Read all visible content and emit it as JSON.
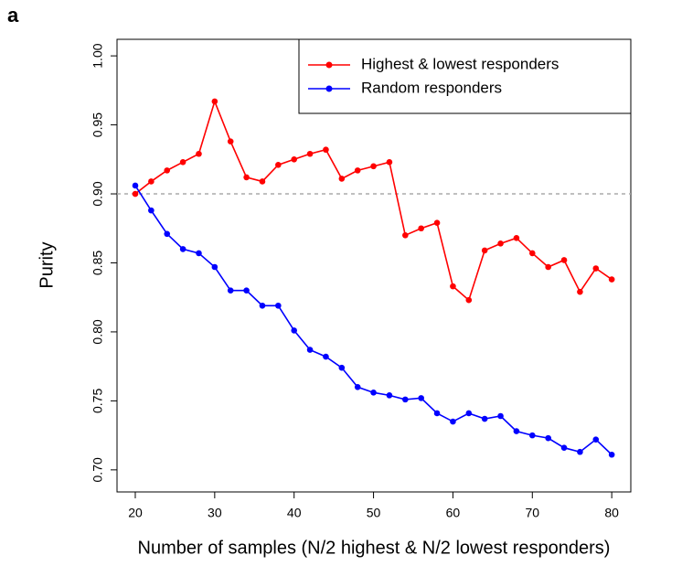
{
  "chart_data": {
    "type": "line",
    "panel_label": "a",
    "x_label": "Number of samples (N/2 highest & N/2 lowest responders)",
    "y_label": "Purity",
    "x": [
      20,
      22,
      24,
      26,
      28,
      30,
      32,
      34,
      36,
      38,
      40,
      42,
      44,
      46,
      48,
      50,
      52,
      54,
      56,
      58,
      60,
      62,
      64,
      66,
      68,
      70,
      72,
      74,
      76,
      78,
      80
    ],
    "series": [
      {
        "name": "Highest & lowest responders",
        "color": "#ff0000",
        "values": [
          0.9,
          0.909,
          0.917,
          0.923,
          0.929,
          0.967,
          0.938,
          0.912,
          0.909,
          0.921,
          0.925,
          0.929,
          0.932,
          0.911,
          0.917,
          0.92,
          0.923,
          0.87,
          0.875,
          0.879,
          0.833,
          0.823,
          0.859,
          0.864,
          0.868,
          0.857,
          0.847,
          0.852,
          0.829,
          0.846,
          0.838
        ]
      },
      {
        "name": "Random responders",
        "color": "#0000ff",
        "values": [
          0.906,
          0.888,
          0.871,
          0.86,
          0.857,
          0.847,
          0.83,
          0.83,
          0.819,
          0.819,
          0.801,
          0.787,
          0.782,
          0.774,
          0.76,
          0.756,
          0.754,
          0.751,
          0.752,
          0.741,
          0.735,
          0.741,
          0.737,
          0.739,
          0.728,
          0.725,
          0.723,
          0.716,
          0.713,
          0.722,
          0.711
        ]
      }
    ],
    "xlim": [
      17.7,
      82.4
    ],
    "ylim": [
      0.684,
      1.012
    ],
    "xticks": [
      20,
      30,
      40,
      50,
      60,
      70,
      80
    ],
    "yticks": [
      {
        "value": 0.7,
        "label": "0.70"
      },
      0.75,
      {
        "value": 0.8,
        "label": "0.80"
      },
      0.85,
      {
        "value": 0.9,
        "label": "0.90"
      },
      0.95,
      {
        "value": 1,
        "label": "1.00"
      }
    ],
    "hline": 0.9,
    "legend_position": "top-right"
  }
}
